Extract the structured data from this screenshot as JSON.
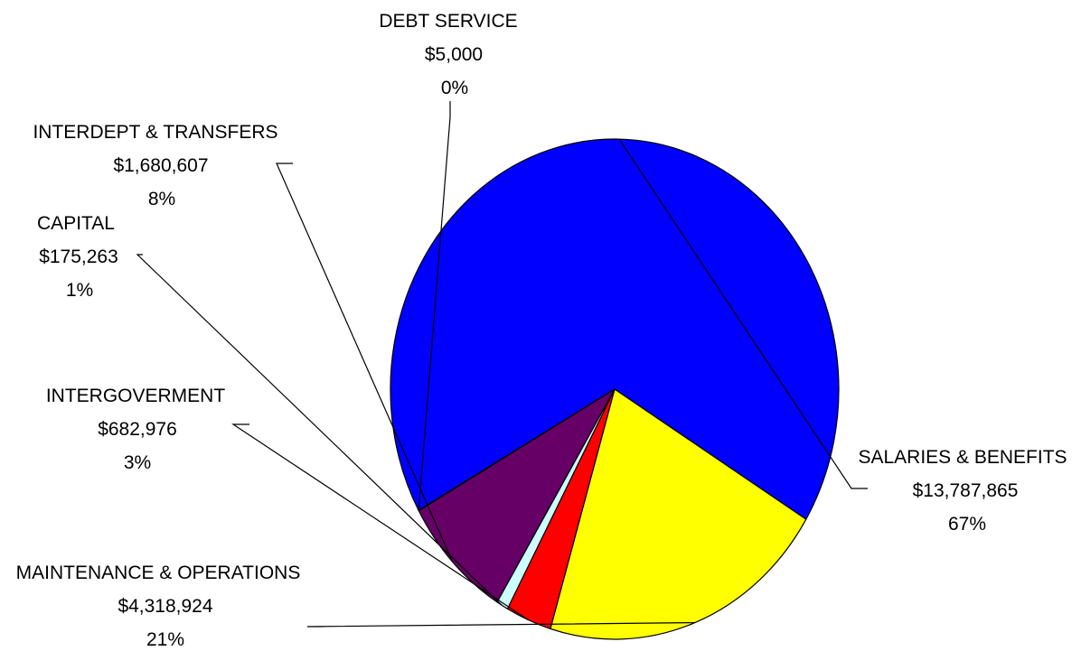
{
  "chart_data": {
    "type": "pie",
    "slices": [
      {
        "label": "SALARIES & BENEFITS",
        "amount": "$13,787,865",
        "percent": "67%",
        "value": 13787865,
        "color": "#0000FF"
      },
      {
        "label": "MAINTENANCE & OPERATIONS",
        "amount": "$4,318,924",
        "percent": "21%",
        "value": 4318924,
        "color": "#FFFF00"
      },
      {
        "label": "INTERGOVERMENT",
        "amount": "$682,976",
        "percent": "3%",
        "value": 682976,
        "color": "#FF0000"
      },
      {
        "label": "CAPITAL",
        "amount": "$175,263",
        "percent": "1%",
        "value": 175263,
        "color": "#CCFFFF"
      },
      {
        "label": "INTERDEPT & TRANSFERS",
        "amount": "$1,680,607",
        "percent": "8%",
        "value": 1680607,
        "color": "#660066"
      },
      {
        "label": "DEBT SERVICE",
        "amount": "$5,000",
        "percent": "0%",
        "value": 5000,
        "color": "#000080"
      }
    ],
    "legend": "none (labels beside slices)"
  }
}
